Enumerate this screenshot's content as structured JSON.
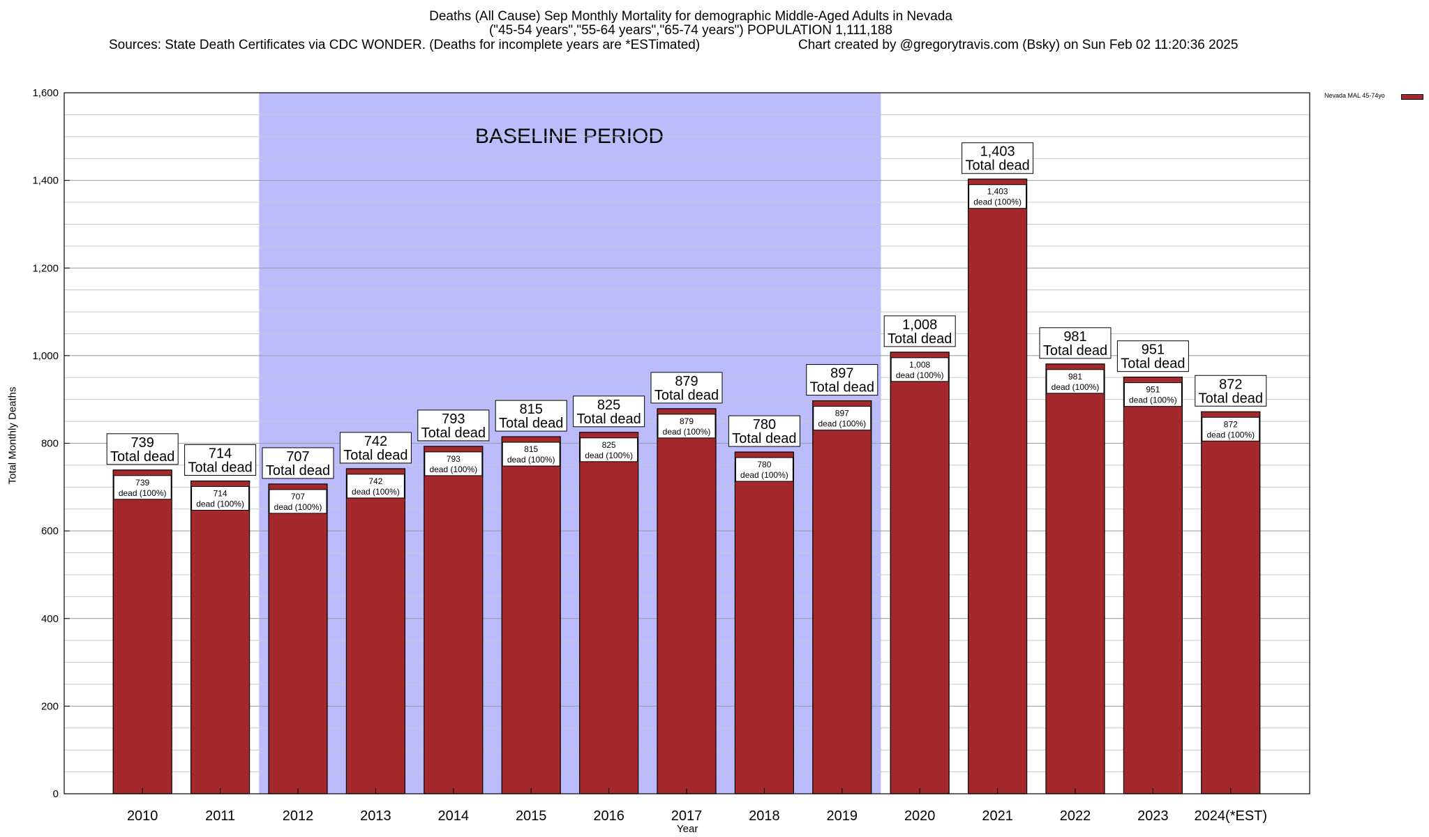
{
  "header": {
    "title_line1": "Deaths (All Cause) Sep Monthly Mortality for demographic Middle-Aged Adults in Nevada",
    "title_line2": "(\"45-54 years\",\"55-64 years\",\"65-74 years\") POPULATION 1,111,188",
    "sources": "Sources: State Death Certificates via CDC WONDER. (Deaths for incomplete years are *ESTimated)",
    "credit": "Chart created by @gregorytravis.com (Bsky) on Sun Feb 02 11:20:36 2025"
  },
  "legend": {
    "label": "Nevada MAL 45-74yo",
    "color": "#a4292c"
  },
  "chart_data": {
    "type": "bar",
    "xlabel": "Year",
    "ylabel": "Total Monthly Deaths",
    "ylim": [
      0,
      1600
    ],
    "yticks": [
      0,
      200,
      400,
      600,
      800,
      1000,
      1200,
      1400,
      1600
    ],
    "ytick_labels": [
      "0",
      "200",
      "400",
      "600",
      "800",
      "1,000",
      "1,200",
      "1,400",
      "1,600"
    ],
    "categories": [
      "2010",
      "2011",
      "2012",
      "2013",
      "2014",
      "2015",
      "2016",
      "2017",
      "2018",
      "2019",
      "2020",
      "2021",
      "2022",
      "2023",
      "2024(*EST)"
    ],
    "series": [
      {
        "name": "Nevada MAL 45-74yo",
        "values": [
          739,
          714,
          707,
          742,
          793,
          815,
          825,
          879,
          780,
          897,
          1008,
          1403,
          981,
          951,
          872
        ],
        "value_labels": [
          "739",
          "714",
          "707",
          "742",
          "793",
          "815",
          "825",
          "879",
          "780",
          "897",
          "1,008",
          "1,403",
          "981",
          "951",
          "872"
        ],
        "color": "#a4292c"
      }
    ],
    "top_label_suffix": "Total dead",
    "inner_label_suffix": "dead (100%)",
    "baseline_period": {
      "label": "BASELINE PERIOD",
      "from": "2012",
      "to": "2019",
      "color": "#bcbcfc"
    },
    "grid": true,
    "legend_position": "top-right"
  }
}
